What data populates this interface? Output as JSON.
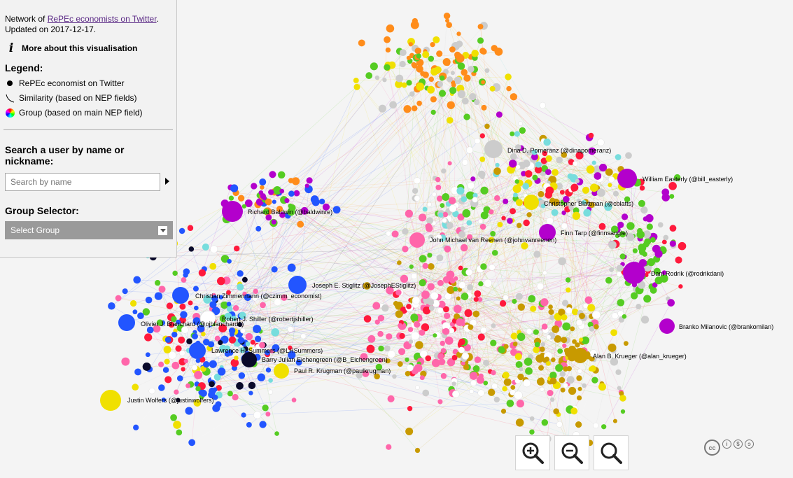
{
  "intro": {
    "prefix": "Network of ",
    "link": "RePEc economists on Twitter",
    "suffix": ".",
    "updated": "Updated on 2017-12-17."
  },
  "about_label": "More about this visualisation",
  "legend": {
    "title": "Legend:",
    "items": [
      {
        "icon": "dot-icon",
        "label": "RePEc economist on Twitter"
      },
      {
        "icon": "edge-curve-icon",
        "label": "Similarity (based on NEP fields)"
      },
      {
        "icon": "color-wheel-icon",
        "label": "Group (based on main NEP field)"
      }
    ]
  },
  "search": {
    "title": "Search a user by name or nickname:",
    "placeholder": "Search by name"
  },
  "group_selector": {
    "title": "Group Selector:",
    "selected": "Select Group"
  },
  "colors": {
    "orange": "#ff8c1a",
    "purple": "#b300cc",
    "blue": "#2255ff",
    "pink": "#ff66aa",
    "olive": "#c89a00",
    "green": "#55cc22",
    "yellow": "#f0e000",
    "red": "#ff1a3c",
    "black": "#0a0a2a",
    "cyan": "#77dddd",
    "white": "#ffffff",
    "grey": "#cccccc"
  },
  "nodes_labeled": [
    {
      "label": "Dina D. Pomeranz (@dinapomeranz)",
      "color": "grey"
    },
    {
      "label": "William Easterly (@bill_easterly)",
      "color": "purple"
    },
    {
      "label": "Richard Baldwin (@baldwinre)",
      "color": "purple"
    },
    {
      "label": "Christopher Blattman (@cblatts)",
      "color": "yellow"
    },
    {
      "label": "Finn Tarp (@finnsangle)",
      "color": "purple"
    },
    {
      "label": "John Michael van Reenen (@johnvanreenen)",
      "color": "pink"
    },
    {
      "label": "Dani Rodrik (@rodrikdani)",
      "color": "purple"
    },
    {
      "label": "Joseph E. Stiglitz (@JosephEStiglitz)",
      "color": "blue"
    },
    {
      "label": "Christian Zimmermann (@czimm_economist)",
      "color": "blue"
    },
    {
      "label": "Robert J. Shiller (@robertjshiller)",
      "color": "white"
    },
    {
      "label": "Olivier J. Blanchard (@ojblanchard1)",
      "color": "blue"
    },
    {
      "label": "Branko Milanovic (@brankomilan)",
      "color": "purple"
    },
    {
      "label": "Lawrence H. Summers (@LHSummers)",
      "color": "blue"
    },
    {
      "label": "Barry Julian Eichengreen (@B_Eichengreen)",
      "color": "black"
    },
    {
      "label": "Paul R. Krugman (@paulkrugman)",
      "color": "yellow"
    },
    {
      "label": "Alan B. Krueger (@alan_krueger)",
      "color": "olive"
    },
    {
      "label": "Justin Wolfers (@justinwolfers)",
      "color": "yellow"
    }
  ],
  "zoom": {
    "zoom_in": "zoom-in-icon",
    "zoom_out": "zoom-out-icon",
    "reset": "zoom-reset-icon"
  },
  "license": {
    "cc": "cc",
    "by": "i",
    "nc": "$",
    "sa": "ↄ"
  }
}
